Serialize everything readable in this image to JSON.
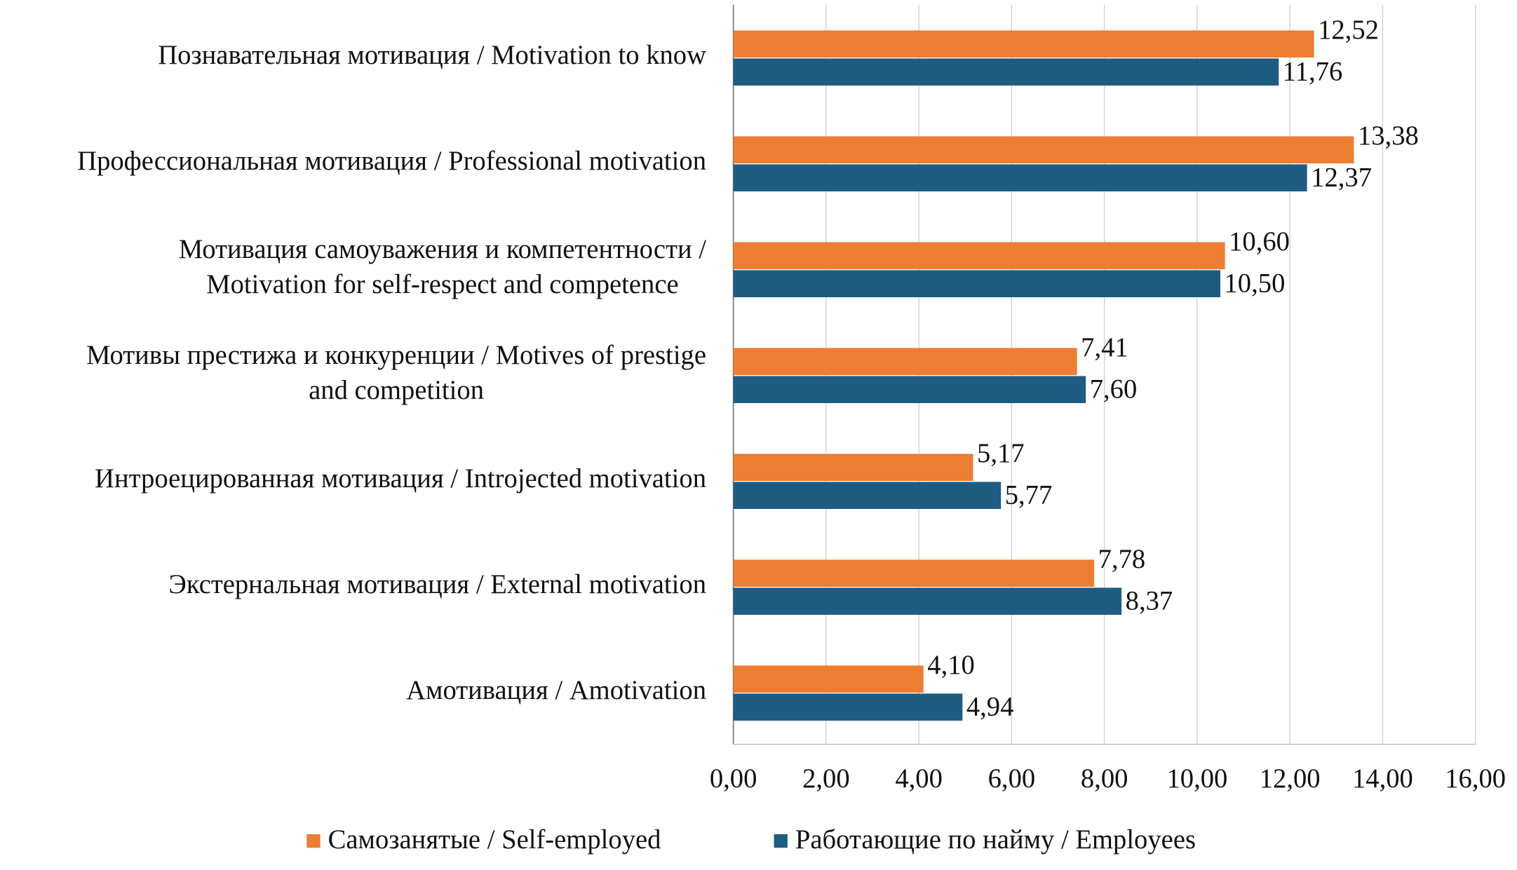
{
  "chart_data": {
    "type": "bar",
    "orientation": "horizontal",
    "categories": [
      "Познавательная мотивация / Motivation to know",
      "Профессиональная мотивация / Professional motivation",
      "Мотивация самоуважения и компетентности /\nMotivation for self-respect and competence",
      "Мотивы престижа и конкуренции / Motives of prestige\nand competition",
      "Интроецированная мотивация / Introjected motivation",
      "Экстернальная мотивация / External motivation",
      "Амотивация / Amotivation"
    ],
    "series": [
      {
        "name": "Самозанятые / Self-employed",
        "color": "#ed7d31",
        "values": [
          12.52,
          13.38,
          10.6,
          7.41,
          5.17,
          7.78,
          4.1
        ],
        "value_labels": [
          "12,52",
          "13,38",
          "10,60",
          "7,41",
          "5,17",
          "7,78",
          "4,10"
        ]
      },
      {
        "name": "Работающие по найму / Employees",
        "color": "#1f5c82",
        "values": [
          11.76,
          12.37,
          10.5,
          7.6,
          5.77,
          8.37,
          4.94
        ],
        "value_labels": [
          "11,76",
          "12,37",
          "10,50",
          "7,60",
          "5,77",
          "8,37",
          "4,94"
        ]
      }
    ],
    "xlim": [
      0,
      16
    ],
    "xticks": [
      {
        "value": 0,
        "label": "0,00"
      },
      {
        "value": 2,
        "label": "2,00"
      },
      {
        "value": 4,
        "label": "4,00"
      },
      {
        "value": 6,
        "label": "6,00"
      },
      {
        "value": 8,
        "label": "8,00"
      },
      {
        "value": 10,
        "label": "10,00"
      },
      {
        "value": 12,
        "label": "12,00"
      },
      {
        "value": 14,
        "label": "14,00"
      },
      {
        "value": 16,
        "label": "16,00"
      }
    ],
    "grid": true,
    "legend": "bottom"
  }
}
